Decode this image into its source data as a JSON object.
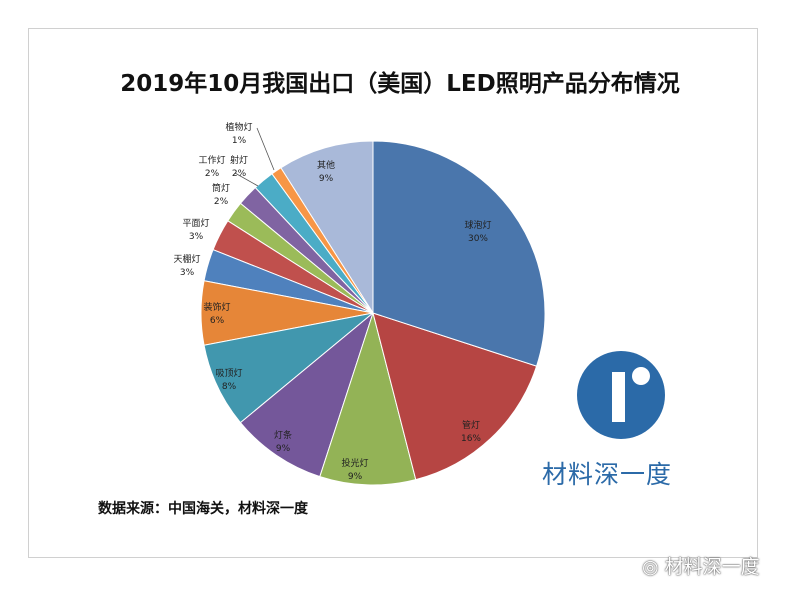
{
  "chart_data": {
    "type": "pie",
    "title": "2019年10月我国出口（美国）LED照明产品分布情况",
    "categories": [
      "球泡灯",
      "管灯",
      "投光灯",
      "灯条",
      "吸顶灯",
      "装饰灯",
      "天棚灯",
      "平面灯",
      "筒灯",
      "工作灯",
      "射灯",
      "植物灯",
      "其他"
    ],
    "values": [
      30,
      16,
      9,
      9,
      8,
      6,
      3,
      3,
      2,
      2,
      2,
      1,
      9
    ],
    "labels": [
      "30%",
      "16%",
      "9%",
      "9%",
      "8%",
      "6%",
      "3%",
      "3%",
      "2%",
      "2%",
      "2%",
      "1%",
      "9%"
    ],
    "colors": [
      "#4a76ac",
      "#b64543",
      "#93b356",
      "#74579a",
      "#4197ae",
      "#e68638",
      "#4f81bd",
      "#c0504d",
      "#9bbb59",
      "#8064a2",
      "#4bacc6",
      "#f79646",
      "#a9b9d9"
    ],
    "legend": "none"
  },
  "source": "数据来源：中国海关，材料深一度",
  "logo_text": "材料深一度",
  "watermark": "材料深一度"
}
